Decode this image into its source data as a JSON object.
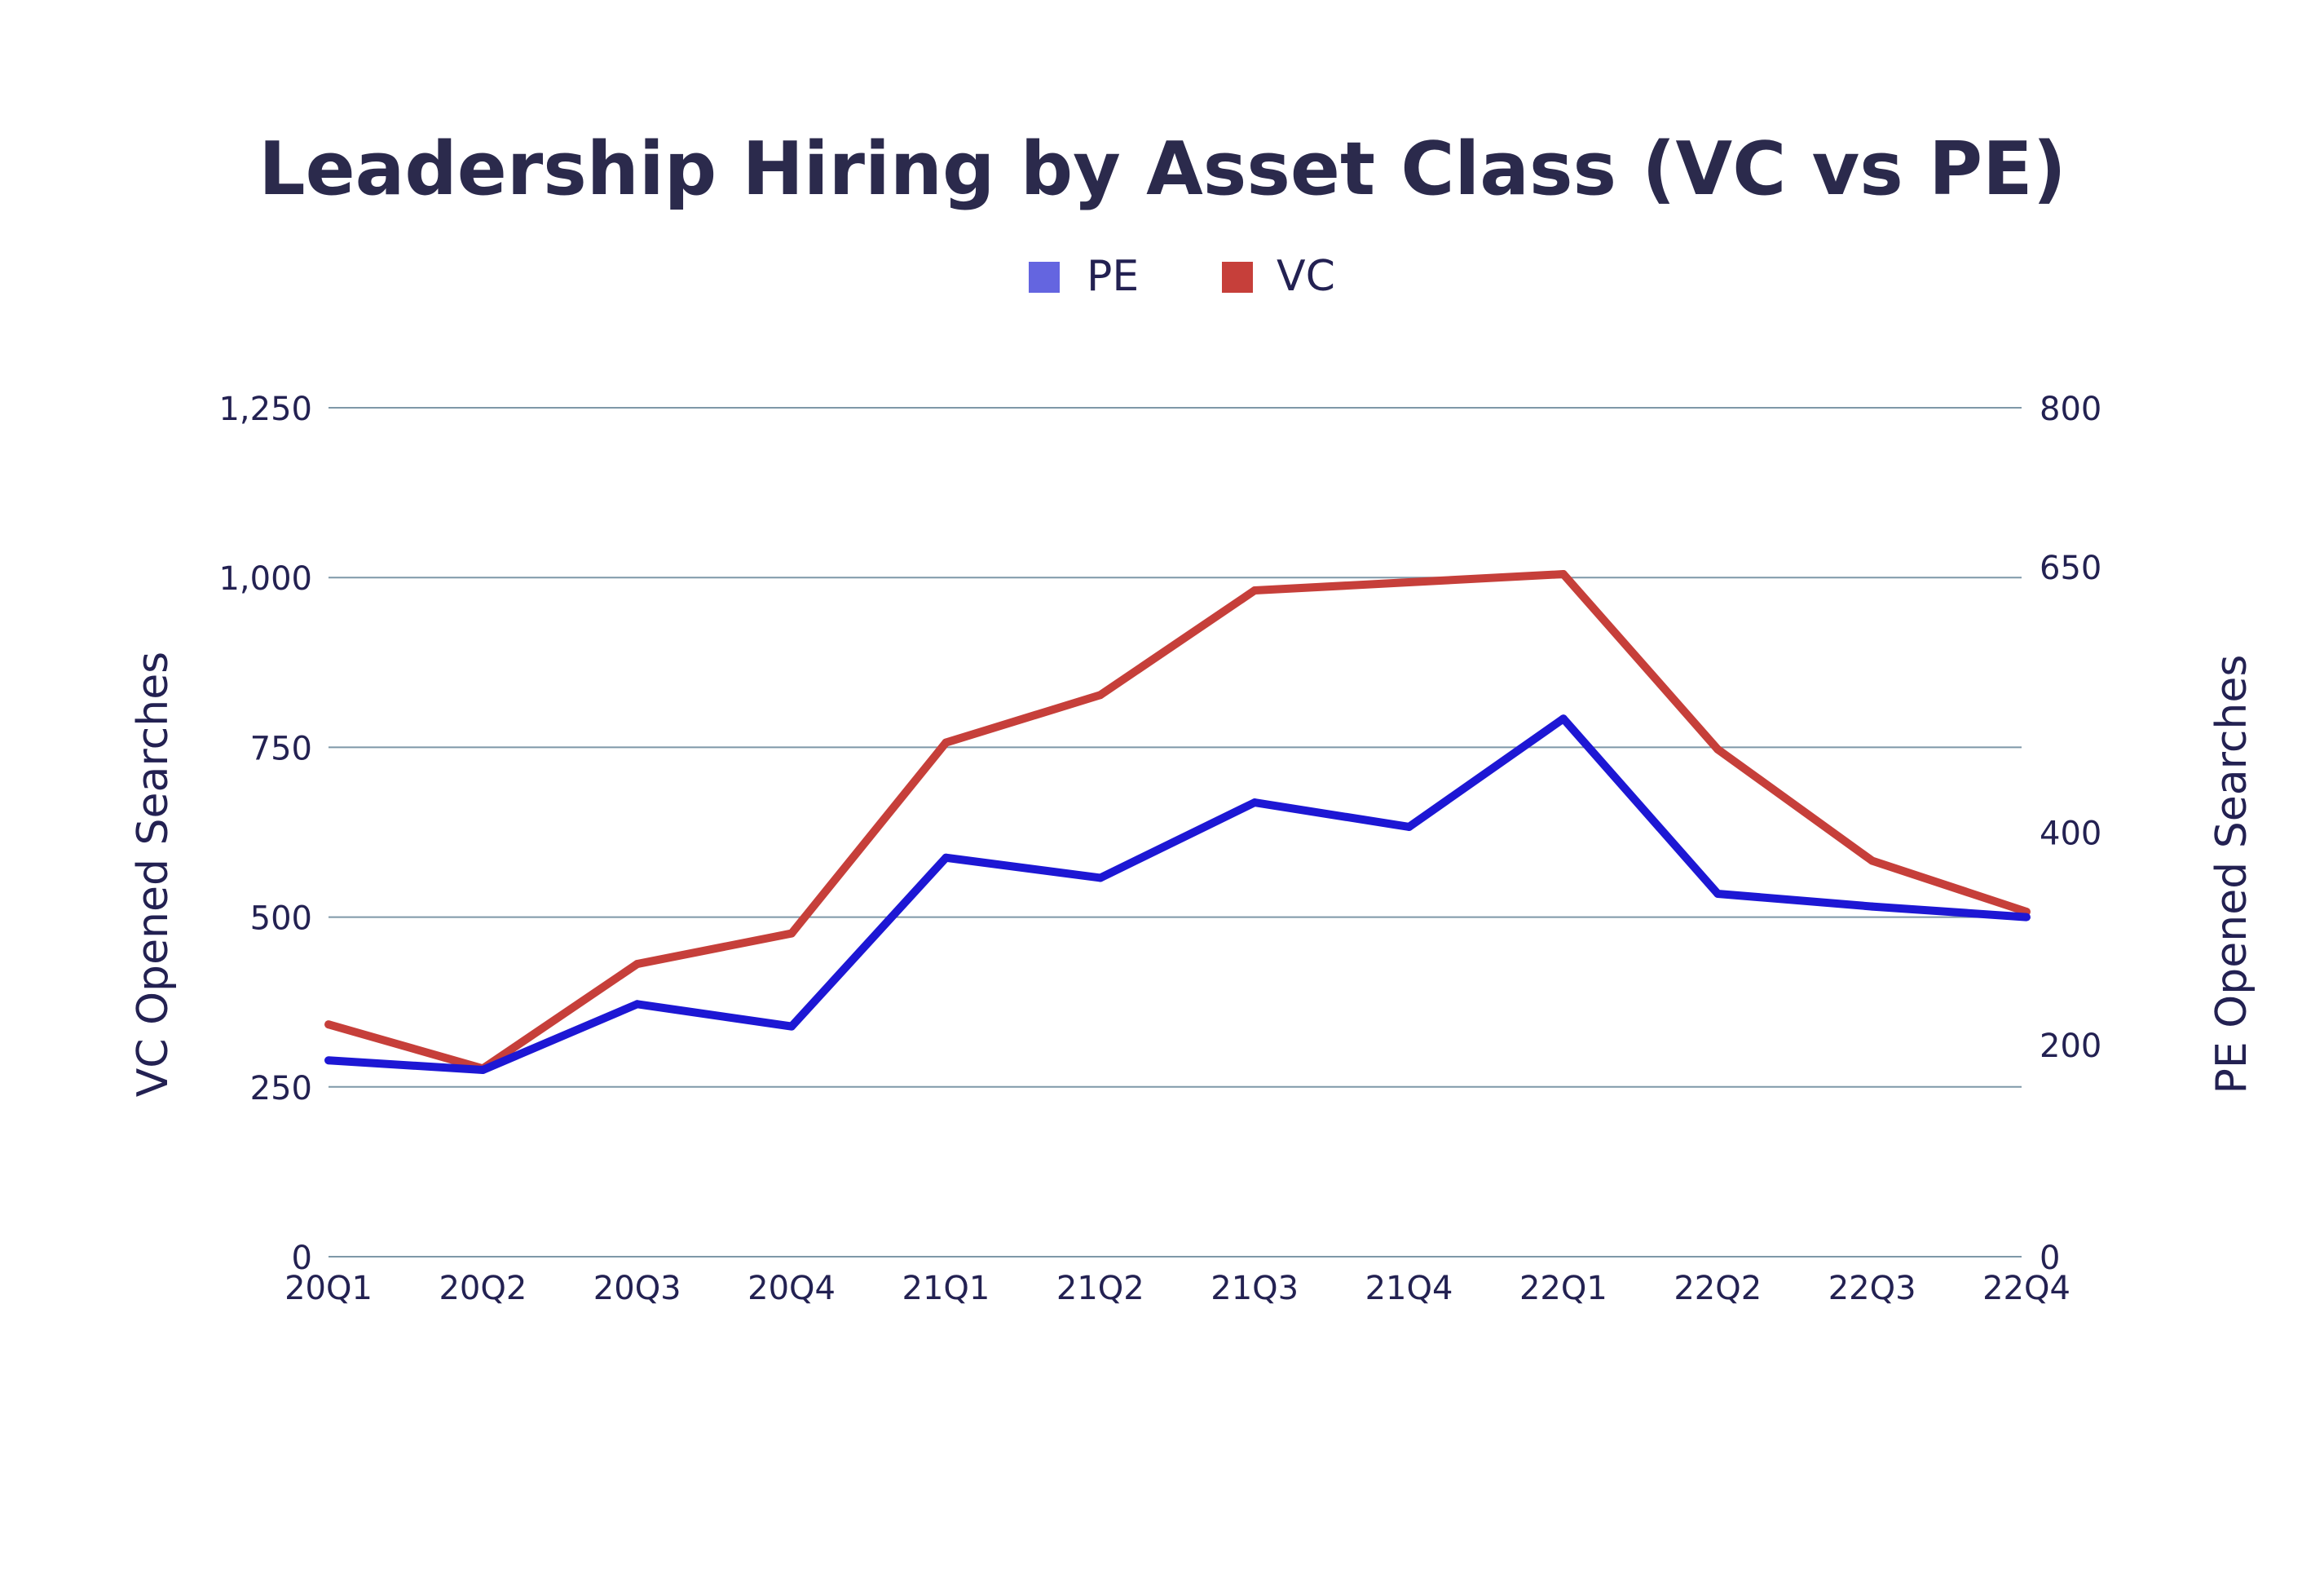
{
  "colors": {
    "title": "#2b2a4c",
    "text": "#232152",
    "grid": "#7e98a8",
    "pe_line": "#1d17d4",
    "pe_legend": "#6465e0",
    "vc": "#c63f3a",
    "background": "#ffffff"
  },
  "chart_data": {
    "type": "line",
    "title": "Leadership Hiring by Asset Class (VC vs PE)",
    "legend": {
      "placement": "top-center",
      "items": [
        {
          "label": "PE",
          "color": "#6465e0"
        },
        {
          "label": "VC",
          "color": "#c63f3a"
        }
      ]
    },
    "categories": [
      "20Q1",
      "20Q2",
      "20Q3",
      "20Q4",
      "21Q1",
      "21Q2",
      "21Q3",
      "21Q4",
      "22Q1",
      "22Q2",
      "22Q3",
      "22Q4"
    ],
    "left_axis": {
      "label": "VC Opened Searches",
      "ylim": [
        0,
        1250
      ],
      "ticks": [
        0,
        250,
        500,
        750,
        1000,
        1250
      ],
      "tick_labels": [
        "0",
        "250",
        "500",
        "750",
        "1,000",
        "1,250"
      ]
    },
    "right_axis": {
      "label": "PE Opened Searches",
      "ylim": [
        0,
        800
      ],
      "ticks": [
        0,
        200,
        400,
        650,
        800
      ],
      "tick_labels": [
        "0",
        "200",
        "400",
        "650",
        "800"
      ]
    },
    "grid": true,
    "series": [
      {
        "name": "PE",
        "axis": "right",
        "color": "#1d17d4",
        "values": [
          185,
          176,
          238,
          217,
          376,
          357,
          428,
          405,
          507,
          342,
          330,
          320
        ]
      },
      {
        "name": "VC",
        "axis": "left",
        "color": "#c63f3a",
        "values": [
          342,
          277,
          431,
          476,
          757,
          827,
          981,
          993,
          1005,
          747,
          583,
          508
        ]
      }
    ]
  }
}
